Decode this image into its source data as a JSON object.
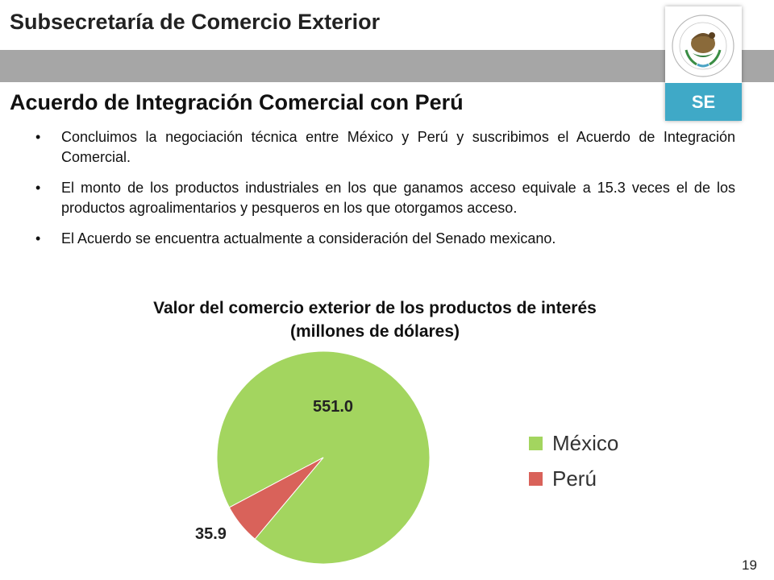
{
  "header": {
    "org_title": "Subsecretaría de Comercio Exterior",
    "logo_label": "SE",
    "seal_icon": "mexican-coat-of-arms-icon"
  },
  "slide": {
    "title": "Acuerdo de Integración Comercial con Perú",
    "bullets": [
      "Concluimos la negociación técnica entre México y Perú y suscribimos el Acuerdo de Integración Comercial.",
      "El monto de los productos industriales en los que ganamos acceso equivale a 15.3 veces el de los productos agroalimentarios y pesqueros en los que otorgamos acceso.",
      "El Acuerdo se encuentra actualmente a consideración del Senado mexicano."
    ],
    "page_number": "19"
  },
  "chart_data": {
    "type": "pie",
    "title": "Valor del comercio exterior de los productos de interés",
    "subtitle": "(millones de dólares)",
    "categories": [
      "México",
      "Perú"
    ],
    "values": [
      551.0,
      35.9
    ],
    "value_labels": [
      "551.0",
      "35.9"
    ],
    "colors": [
      "#a3d55f",
      "#d9625a"
    ],
    "legend": "right"
  },
  "colors": {
    "band_gray": "#a6a6a6",
    "logo_blue": "#3fa9c7"
  }
}
